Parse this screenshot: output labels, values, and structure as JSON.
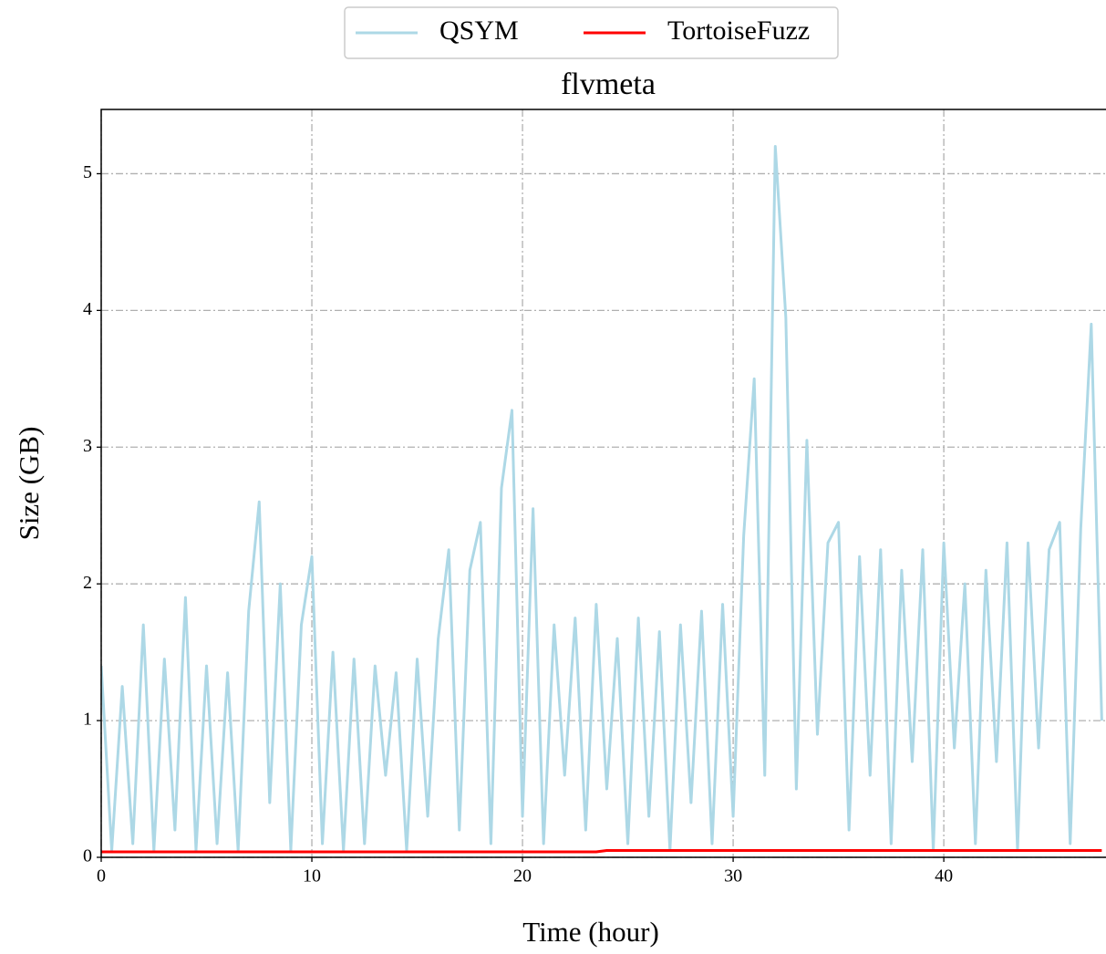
{
  "chart_data": {
    "type": "line",
    "title": "flvmeta",
    "x_label": "Time (hour)",
    "y_label": "Size (GB)",
    "x": [
      0,
      0.5,
      1,
      1.5,
      2,
      2.5,
      3,
      3.5,
      4,
      4.5,
      5,
      5.5,
      6,
      6.5,
      7,
      7.5,
      8,
      8.5,
      9,
      9.5,
      10,
      10.5,
      11,
      11.5,
      12,
      12.5,
      13,
      13.5,
      14,
      14.5,
      15,
      15.5,
      16,
      16.5,
      17,
      17.5,
      18,
      18.5,
      19,
      19.5,
      20,
      20.5,
      21,
      21.5,
      22,
      22.5,
      23,
      23.5,
      24,
      24.5,
      25,
      25.5,
      26,
      26.5,
      27,
      27.5,
      28,
      28.5,
      29,
      29.5,
      30,
      30.5,
      31,
      31.5,
      32,
      32.5,
      33,
      33.5,
      34,
      34.5,
      35,
      35.5,
      36,
      36.5,
      37,
      37.5,
      38,
      38.5,
      39,
      39.5,
      40,
      40.5,
      41,
      41.5,
      42,
      42.5,
      43,
      43.5,
      44,
      44.5,
      45,
      45.5,
      46,
      46.5,
      47,
      47.5
    ],
    "series": [
      {
        "name": "QSYM",
        "color": "#add8e6",
        "values": [
          1.4,
          0.05,
          1.25,
          0.1,
          1.7,
          0.05,
          1.45,
          0.2,
          1.9,
          0.05,
          1.4,
          0.1,
          1.35,
          0.05,
          1.8,
          2.6,
          0.4,
          2.0,
          0.05,
          1.7,
          2.2,
          0.1,
          1.5,
          0.05,
          1.45,
          0.1,
          1.4,
          0.6,
          1.35,
          0.05,
          1.45,
          0.3,
          1.6,
          2.25,
          0.2,
          2.1,
          2.45,
          0.1,
          2.7,
          3.27,
          0.3,
          2.55,
          0.1,
          1.7,
          0.6,
          1.75,
          0.2,
          1.85,
          0.5,
          1.6,
          0.1,
          1.75,
          0.3,
          1.65,
          0.05,
          1.7,
          0.4,
          1.8,
          0.1,
          1.85,
          0.3,
          2.35,
          3.5,
          0.6,
          5.2,
          3.95,
          0.5,
          3.05,
          0.9,
          2.3,
          2.45,
          0.2,
          2.2,
          0.6,
          2.25,
          0.1,
          2.1,
          0.7,
          2.25,
          0.05,
          2.3,
          0.8,
          2.0,
          0.1,
          2.1,
          0.7,
          2.3,
          0.05,
          2.3,
          0.8,
          2.25,
          2.45,
          0.1,
          2.4,
          3.9,
          1.0
        ]
      },
      {
        "name": "TortoiseFuzz",
        "color": "#ff0000",
        "values": [
          0.04,
          0.04,
          0.04,
          0.04,
          0.04,
          0.04,
          0.04,
          0.04,
          0.04,
          0.04,
          0.04,
          0.04,
          0.04,
          0.04,
          0.04,
          0.04,
          0.04,
          0.04,
          0.04,
          0.04,
          0.04,
          0.04,
          0.04,
          0.04,
          0.04,
          0.04,
          0.04,
          0.04,
          0.04,
          0.04,
          0.04,
          0.04,
          0.04,
          0.04,
          0.04,
          0.04,
          0.04,
          0.04,
          0.04,
          0.04,
          0.04,
          0.04,
          0.04,
          0.04,
          0.04,
          0.04,
          0.04,
          0.04,
          0.05,
          0.05,
          0.05,
          0.05,
          0.05,
          0.05,
          0.05,
          0.05,
          0.05,
          0.05,
          0.05,
          0.05,
          0.05,
          0.05,
          0.05,
          0.05,
          0.05,
          0.05,
          0.05,
          0.05,
          0.05,
          0.05,
          0.05,
          0.05,
          0.05,
          0.05,
          0.05,
          0.05,
          0.05,
          0.05,
          0.05,
          0.05,
          0.05,
          0.05,
          0.05,
          0.05,
          0.05,
          0.05,
          0.05,
          0.05,
          0.05,
          0.05,
          0.05,
          0.05,
          0.05,
          0.05,
          0.05,
          0.05
        ]
      }
    ],
    "xlim": [
      0,
      47.7
    ],
    "xticks": [
      0,
      10,
      20,
      30,
      40
    ],
    "ylim": [
      0,
      5.47
    ],
    "yticks": [
      0,
      1,
      2,
      3,
      4,
      5
    ],
    "grid": true,
    "legend": "upper center"
  }
}
